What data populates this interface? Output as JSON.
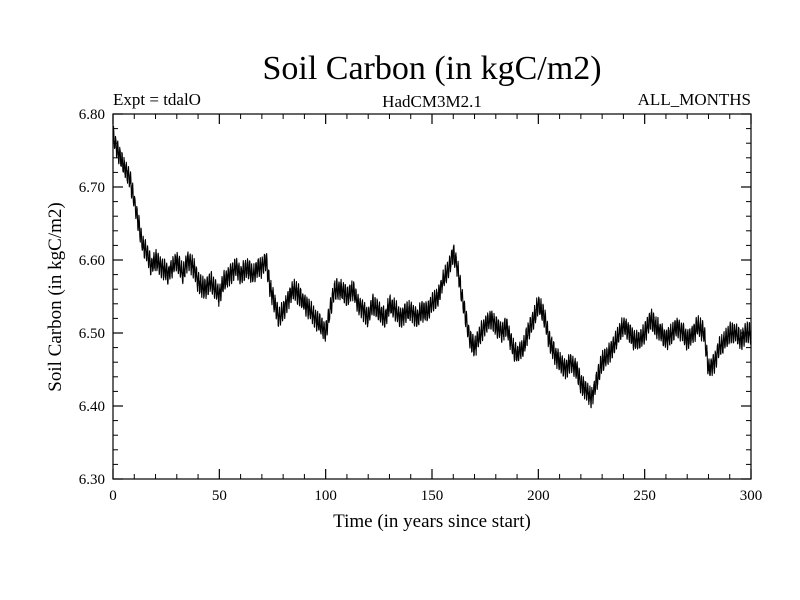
{
  "chart_data": {
    "type": "line",
    "title": "Soil Carbon (in kgC/m2)",
    "subtitle_left": "Expt = tdalO",
    "subtitle_center": "HadCM3M2.1",
    "subtitle_right": "ALL_MONTHS",
    "xlabel": "Time (in years since start)",
    "ylabel": "Soil Carbon (in kgC/m2)",
    "xlim": [
      0,
      300
    ],
    "ylim": [
      6.3,
      6.8
    ],
    "x_ticks": [
      0,
      50,
      100,
      150,
      200,
      250,
      300
    ],
    "x_tick_labels": [
      "0",
      "50",
      "100",
      "150",
      "200",
      "250",
      "300"
    ],
    "y_ticks": [
      6.3,
      6.4,
      6.5,
      6.6,
      6.7,
      6.8
    ],
    "y_tick_labels": [
      "6.30",
      "6.40",
      "6.50",
      "6.60",
      "6.70",
      "6.80"
    ],
    "x_minor_step": 10,
    "y_minor_step": 0.02,
    "line_color": "#000000",
    "seasonal_amplitude": 0.012,
    "series": [
      {
        "x": [
          0,
          2,
          5,
          8,
          10,
          12,
          14,
          16,
          18,
          20,
          23,
          26,
          28,
          30,
          33,
          35,
          38,
          40,
          43,
          46,
          48,
          50,
          52,
          55,
          58,
          60,
          63,
          66,
          68,
          70,
          72,
          74,
          76,
          78,
          80,
          83,
          85,
          88,
          90,
          93,
          95,
          98,
          100,
          102,
          104,
          107,
          110,
          113,
          115,
          118,
          120,
          122,
          125,
          128,
          130,
          133,
          135,
          138,
          140,
          143,
          145,
          148,
          150,
          153,
          155,
          158,
          160,
          162,
          164,
          166,
          168,
          170,
          173,
          175,
          178,
          180,
          183,
          185,
          188,
          190,
          193,
          195,
          198,
          200,
          203,
          205,
          208,
          210,
          213,
          215,
          218,
          220,
          223,
          225,
          228,
          230,
          233,
          235,
          238,
          240,
          243,
          245,
          248,
          250,
          253,
          255,
          258,
          260,
          263,
          265,
          268,
          270,
          273,
          275,
          278,
          280,
          283,
          285,
          288,
          290,
          293,
          295,
          298,
          300
        ],
        "y": [
          6.77,
          6.75,
          6.73,
          6.71,
          6.68,
          6.65,
          6.62,
          6.61,
          6.59,
          6.6,
          6.59,
          6.58,
          6.59,
          6.6,
          6.58,
          6.6,
          6.59,
          6.57,
          6.56,
          6.57,
          6.56,
          6.55,
          6.57,
          6.58,
          6.59,
          6.58,
          6.59,
          6.58,
          6.59,
          6.59,
          6.6,
          6.56,
          6.54,
          6.52,
          6.53,
          6.55,
          6.56,
          6.55,
          6.54,
          6.53,
          6.52,
          6.51,
          6.5,
          6.53,
          6.56,
          6.56,
          6.55,
          6.56,
          6.54,
          6.53,
          6.52,
          6.54,
          6.53,
          6.52,
          6.54,
          6.53,
          6.52,
          6.53,
          6.53,
          6.52,
          6.53,
          6.53,
          6.54,
          6.55,
          6.57,
          6.59,
          6.61,
          6.59,
          6.55,
          6.52,
          6.49,
          6.48,
          6.5,
          6.51,
          6.52,
          6.51,
          6.5,
          6.51,
          6.48,
          6.47,
          6.48,
          6.5,
          6.52,
          6.54,
          6.52,
          6.49,
          6.47,
          6.46,
          6.45,
          6.46,
          6.45,
          6.43,
          6.42,
          6.41,
          6.44,
          6.46,
          6.47,
          6.48,
          6.5,
          6.51,
          6.5,
          6.49,
          6.49,
          6.5,
          6.52,
          6.51,
          6.5,
          6.49,
          6.5,
          6.51,
          6.5,
          6.49,
          6.5,
          6.51,
          6.5,
          6.45,
          6.46,
          6.48,
          6.49,
          6.5,
          6.5,
          6.49,
          6.5,
          6.5
        ]
      }
    ]
  }
}
